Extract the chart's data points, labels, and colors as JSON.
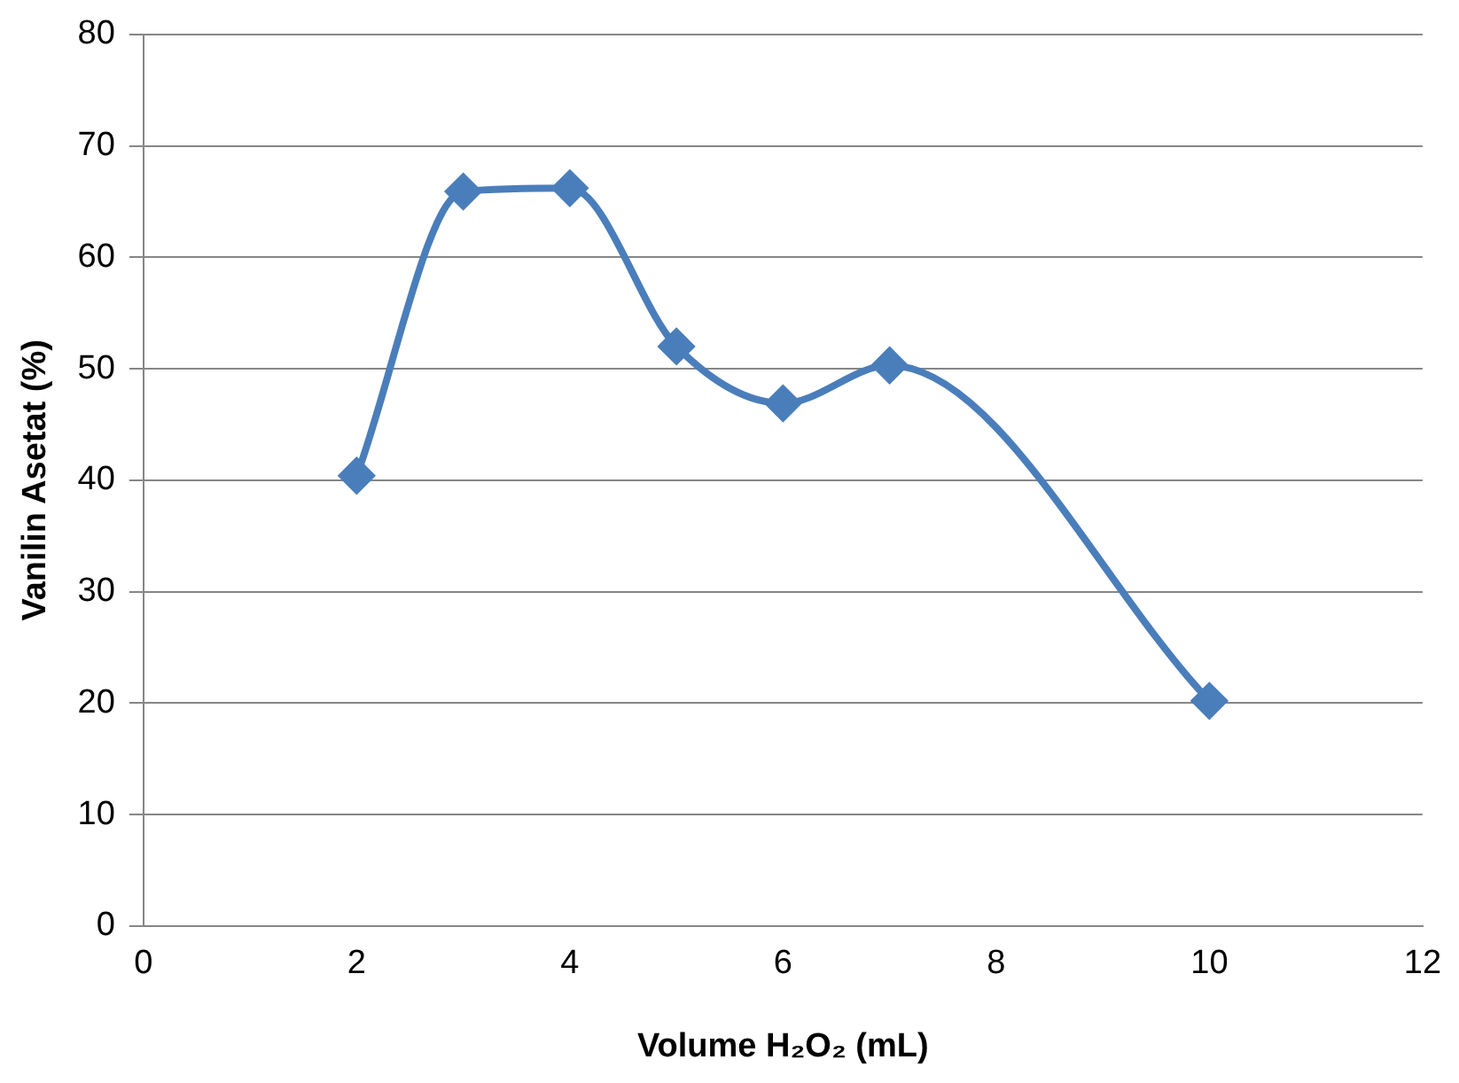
{
  "chart_data": {
    "type": "line",
    "xlabel": "Volume H₂O₂ (mL)",
    "ylabel": "Vanilin Asetat (%)",
    "x": [
      2,
      3,
      4,
      5,
      6,
      7,
      10
    ],
    "series": [
      {
        "color": "#4a7ebb",
        "values": [
          40.4,
          65.9,
          66.2,
          52.0,
          46.9,
          50.3,
          20.2
        ]
      }
    ],
    "xlim": [
      0,
      12
    ],
    "xticks": [
      0,
      2,
      4,
      6,
      8,
      10,
      12
    ],
    "ylim": [
      0,
      80
    ],
    "yticks": [
      0,
      10,
      20,
      30,
      40,
      50,
      60,
      70,
      80
    ],
    "grid": "y",
    "legend": false,
    "marker": "diamond",
    "line_style": "solid"
  }
}
